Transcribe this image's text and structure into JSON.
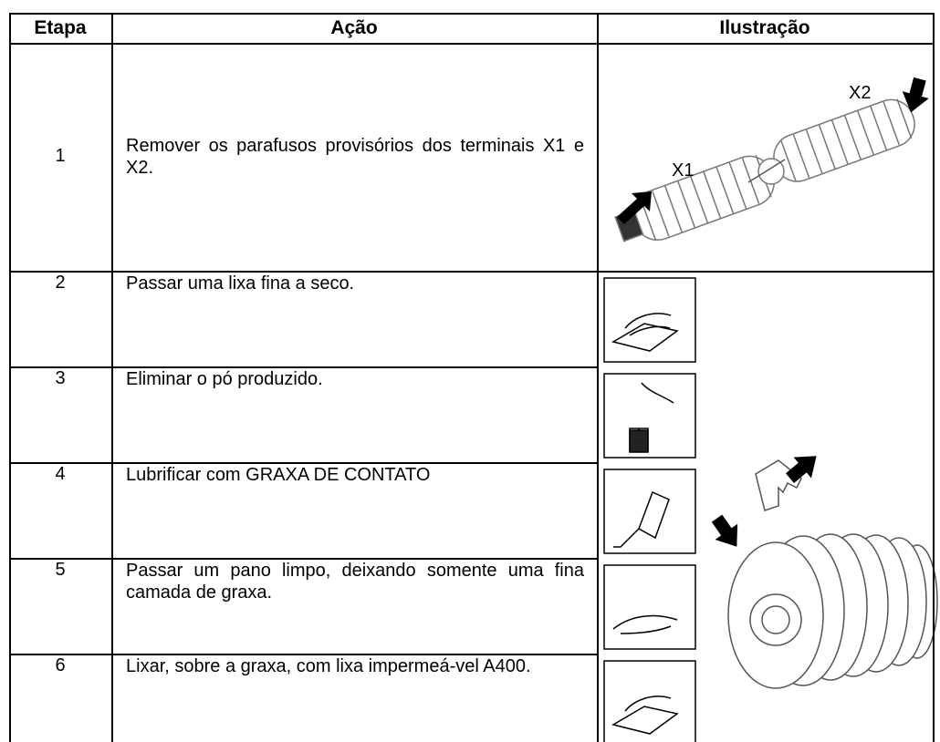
{
  "header": {
    "columns": [
      "Etapa",
      "Ação",
      "Ilustração"
    ]
  },
  "table": {
    "rows": [
      [
        "1",
        "Remover os parafusos provisórios dos terminais X1 e X2."
      ],
      [
        "2",
        "Passar uma lixa fina a seco."
      ],
      [
        "3",
        "Eliminar o pó produzido."
      ],
      [
        "4",
        "Lubrificar com GRAXA DE CONTATO"
      ],
      [
        "5",
        "Passar um pano limpo, deixando somente uma fina camada de graxa."
      ],
      [
        "6",
        "Lixar, sobre a graxa, com lixa impermeá-vel A400."
      ]
    ]
  },
  "illustration": {
    "labels": [
      "X1",
      "X2"
    ]
  }
}
